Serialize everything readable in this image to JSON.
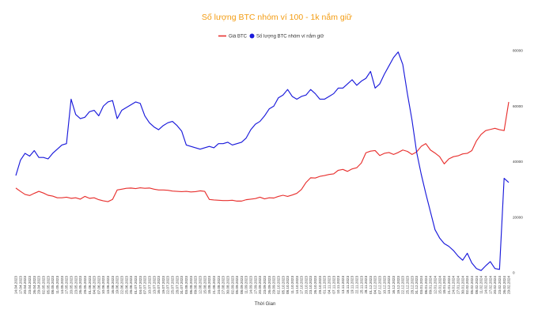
{
  "chart_data": {
    "type": "line",
    "title": "Số lượng BTC nhóm ví 100 - 1k nắm giữ",
    "xlabel": "Thời Gian",
    "ylabel": "",
    "legend_position": "top-center",
    "grid": false,
    "right_axis": {
      "ylim": [
        0,
        80000
      ],
      "ticks": [
        "0",
        "20000",
        "40000",
        "60000",
        "80000"
      ]
    },
    "x_tick_labels": [
      "14.04.2023",
      "17.04.2023",
      "20.04.2023",
      "23.04.2023",
      "26.04.2023",
      "29.04.2023",
      "02.05.2023",
      "05.05.2023",
      "08.05.2023",
      "11.05.2023",
      "14.05.2023",
      "17.05.2023",
      "20.05.2023",
      "23.05.2023",
      "26.05.2023",
      "29.05.2023",
      "01.06.2023",
      "04.06.2023",
      "07.06.2023",
      "10.06.2023",
      "13.06.2023",
      "16.06.2023",
      "19.06.2023",
      "22.06.2023",
      "25.06.2023",
      "28.06.2023",
      "01.07.2023",
      "04.07.2023",
      "07.07.2023",
      "10.07.2023",
      "13.07.2023",
      "16.07.2023",
      "19.07.2023",
      "22.07.2023",
      "25.07.2023",
      "28.07.2023",
      "31.07.2023",
      "03.08.2023",
      "06.08.2023",
      "09.08.2023",
      "12.08.2023",
      "15.08.2023",
      "18.08.2023",
      "21.08.2023",
      "24.08.2023",
      "27.08.2023",
      "30.08.2023",
      "02.09.2023",
      "05.09.2023",
      "08.09.2023",
      "11.09.2023",
      "14.09.2023",
      "17.09.2023",
      "20.09.2023",
      "23.09.2023",
      "26.09.2023",
      "29.09.2023",
      "02.10.2023",
      "05.10.2023",
      "08.10.2023",
      "11.10.2023",
      "14.10.2023",
      "17.10.2023",
      "20.10.2023",
      "23.10.2023",
      "26.10.2023",
      "29.10.2023",
      "01.11.2023",
      "04.11.2023",
      "07.11.2023",
      "10.11.2023",
      "13.11.2023",
      "16.11.2023",
      "19.11.2023",
      "22.11.2023",
      "25.11.2023",
      "28.11.2023",
      "01.12.2023",
      "04.12.2023",
      "07.12.2023",
      "10.12.2023",
      "13.12.2023",
      "16.12.2023",
      "19.12.2023",
      "22.12.2023",
      "25.12.2023",
      "28.12.2023",
      "31.12.2023",
      "03.01.2024",
      "06.01.2024",
      "09.01.2024",
      "12.01.2024",
      "15.01.2024",
      "18.01.2024",
      "21.01.2024",
      "24.01.2024",
      "27.01.2024",
      "30.01.2024",
      "02.02.2024",
      "05.02.2024",
      "08.02.2024",
      "11.02.2024",
      "14.02.2024",
      "17.02.2024",
      "20.02.2024",
      "23.02.2024",
      "26.02.2024",
      "29.02.2024"
    ],
    "series": [
      {
        "name": "Giá BTC",
        "color": "#e8312f",
        "values": [
          30500,
          29300,
          28200,
          27800,
          28600,
          29300,
          28700,
          27900,
          27600,
          27000,
          27000,
          27200,
          26800,
          27000,
          26500,
          27500,
          26800,
          27000,
          26300,
          25900,
          25600,
          26400,
          29800,
          30100,
          30400,
          30500,
          30300,
          30600,
          30400,
          30500,
          30100,
          29800,
          29800,
          29700,
          29400,
          29300,
          29200,
          29300,
          29100,
          29200,
          29500,
          29300,
          26400,
          26200,
          26100,
          26000,
          26000,
          26100,
          25800,
          25800,
          26300,
          26500,
          26700,
          27200,
          26600,
          27000,
          26900,
          27500,
          27900,
          27500,
          28000,
          28600,
          30000,
          32500,
          34200,
          34100,
          34700,
          35000,
          35400,
          35600,
          36900,
          37200,
          36500,
          37400,
          37800,
          39500,
          43200,
          43800,
          44000,
          42200,
          43000,
          43300,
          42600,
          43300,
          44200,
          43700,
          42600,
          43500,
          45500,
          46500,
          44200,
          43100,
          41800,
          39200,
          41000,
          41800,
          42100,
          42800,
          43000,
          44000,
          47500,
          49800,
          51200,
          51600,
          52000,
          51500,
          51200,
          61500
        ]
      },
      {
        "name": "Số lượng BTC nhóm ví nắm giữ",
        "color": "#1a1adb",
        "values": [
          35000,
          40500,
          43000,
          42000,
          44000,
          41500,
          41500,
          41000,
          43000,
          44500,
          46000,
          46500,
          62500,
          57000,
          55500,
          56000,
          58000,
          58500,
          56500,
          60000,
          61500,
          62000,
          55500,
          58500,
          59500,
          60500,
          61500,
          61000,
          56500,
          54000,
          52500,
          51500,
          53000,
          54000,
          54500,
          53000,
          51000,
          46000,
          45500,
          45000,
          44500,
          45000,
          45500,
          45000,
          46500,
          46500,
          47000,
          46000,
          46500,
          47000,
          48500,
          51500,
          53500,
          54500,
          56500,
          59000,
          60000,
          63000,
          64000,
          66000,
          63500,
          62500,
          63500,
          64000,
          66000,
          64500,
          62500,
          62500,
          63500,
          64500,
          66500,
          66500,
          68000,
          69500,
          67500,
          69000,
          70000,
          72500,
          66500,
          68000,
          71500,
          74500,
          77500,
          79500,
          75000,
          64500,
          55000,
          43500,
          35500,
          28500,
          22000,
          15500,
          12500,
          10500,
          9500,
          8000,
          6000,
          4500,
          7000,
          3500,
          1500,
          800,
          2500,
          4000,
          1500,
          1200,
          34000,
          32500
        ]
      }
    ]
  }
}
